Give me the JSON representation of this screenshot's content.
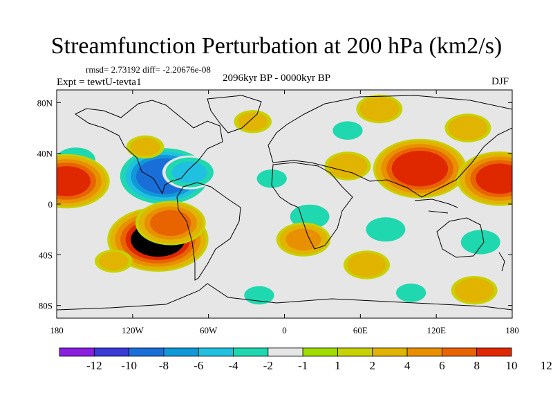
{
  "title": "Streamfunction Perturbation at 200 hPa (km2/s)",
  "stats_text": "rmsd= 2.73192 diff= -2.20676e-08",
  "left_label": "Expt = tewtU-tevta1",
  "center_label": "2096kyr BP - 0000kyr BP",
  "right_label": "DJF",
  "map": {
    "projection": "cylindrical-equidistant",
    "lon_range": [
      -180,
      180
    ],
    "lat_range": [
      -90,
      90
    ],
    "background_color": "#e6e6e6",
    "coastline_color": "#000000",
    "lon_ticks": [
      {
        "value": -180,
        "label": "180"
      },
      {
        "value": -120,
        "label": "120W"
      },
      {
        "value": -60,
        "label": "60W"
      },
      {
        "value": 0,
        "label": "0"
      },
      {
        "value": 60,
        "label": "60E"
      },
      {
        "value": 120,
        "label": "120E"
      },
      {
        "value": 180,
        "label": "180"
      }
    ],
    "lat_ticks": [
      {
        "value": 80,
        "label": "80N"
      },
      {
        "value": 40,
        "label": "40N"
      },
      {
        "value": 0,
        "label": "0"
      },
      {
        "value": -40,
        "label": "40S"
      },
      {
        "value": -80,
        "label": "80S"
      }
    ]
  },
  "colorbar": {
    "colors": [
      "#8a1fe0",
      "#3a3ad8",
      "#1a6ed8",
      "#1098d8",
      "#20c0e0",
      "#20d8b0",
      "#e6e6e6",
      "#a0dc00",
      "#c8d200",
      "#e0b400",
      "#e89000",
      "#e86400",
      "#e02800"
    ],
    "labels": [
      "-12",
      "-10",
      "-8",
      "-6",
      "-4",
      "-2",
      "-1",
      "1",
      "2",
      "4",
      "6",
      "8",
      "10",
      "12"
    ]
  },
  "chart_data": {
    "type": "heatmap",
    "field": "200 hPa streamfunction perturbation",
    "units": "km2/s",
    "anomaly_centers": [
      {
        "lon": -95,
        "lat": 22,
        "value": -9
      },
      {
        "lon": -165,
        "lat": 35,
        "value": -3
      },
      {
        "lon": -75,
        "lat": 25,
        "value": -4
      },
      {
        "lon": -10,
        "lat": 20,
        "value": -2
      },
      {
        "lon": 20,
        "lat": -10,
        "value": -3
      },
      {
        "lon": 80,
        "lat": -20,
        "value": -3
      },
      {
        "lon": 155,
        "lat": -30,
        "value": -3
      },
      {
        "lon": -20,
        "lat": -72,
        "value": -2
      },
      {
        "lon": 100,
        "lat": -70,
        "value": -2
      },
      {
        "lon": 50,
        "lat": 58,
        "value": -2
      },
      {
        "lon": -100,
        "lat": -28,
        "value": 10
      },
      {
        "lon": -90,
        "lat": -15,
        "value": 6
      },
      {
        "lon": -172,
        "lat": 18,
        "value": 8
      },
      {
        "lon": 107,
        "lat": 28,
        "value": 9
      },
      {
        "lon": 170,
        "lat": 20,
        "value": 8
      },
      {
        "lon": 50,
        "lat": 30,
        "value": 3
      },
      {
        "lon": 15,
        "lat": -28,
        "value": 4
      },
      {
        "lon": -135,
        "lat": -45,
        "value": 2
      },
      {
        "lon": 65,
        "lat": -48,
        "value": 3
      },
      {
        "lon": 75,
        "lat": 75,
        "value": 3
      },
      {
        "lon": 145,
        "lat": 60,
        "value": 3
      },
      {
        "lon": -110,
        "lat": 45,
        "value": 2
      },
      {
        "lon": -25,
        "lat": 65,
        "value": 2
      },
      {
        "lon": 150,
        "lat": -68,
        "value": 3
      }
    ]
  }
}
